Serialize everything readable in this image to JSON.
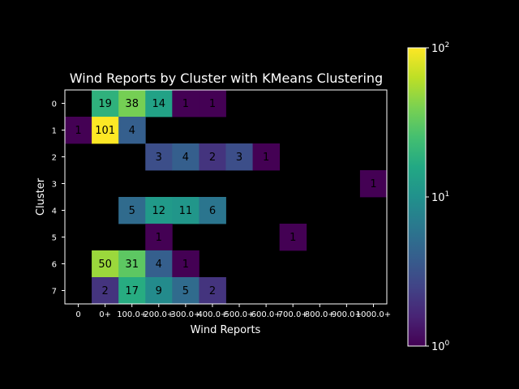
{
  "chart_data": {
    "type": "heatmap",
    "title": "Wind Reports by Cluster with KMeans Clustering",
    "xlabel": "Wind Reports",
    "ylabel": "Cluster",
    "x_categories": [
      "0",
      "0+",
      "100.0+",
      "200.0+",
      "300.0+",
      "400.0+",
      "500.0+",
      "600.0+",
      "700.0+",
      "800.0+",
      "900.0+",
      "1000.0+"
    ],
    "y_categories": [
      "0",
      "1",
      "2",
      "3",
      "4",
      "5",
      "6",
      "7"
    ],
    "values": [
      [
        null,
        19,
        38,
        14,
        1,
        1,
        null,
        null,
        null,
        null,
        null,
        null
      ],
      [
        1,
        101,
        4,
        null,
        null,
        null,
        null,
        null,
        null,
        null,
        null,
        null
      ],
      [
        null,
        null,
        null,
        3,
        4,
        2,
        3,
        1,
        null,
        null,
        null,
        null
      ],
      [
        null,
        null,
        null,
        null,
        null,
        null,
        null,
        null,
        null,
        null,
        null,
        1
      ],
      [
        null,
        null,
        5,
        12,
        11,
        6,
        null,
        null,
        null,
        null,
        null,
        null
      ],
      [
        null,
        null,
        null,
        1,
        null,
        null,
        null,
        null,
        1,
        null,
        null,
        null
      ],
      [
        null,
        50,
        31,
        4,
        1,
        null,
        null,
        null,
        null,
        null,
        null,
        null
      ],
      [
        null,
        2,
        17,
        9,
        5,
        2,
        null,
        null,
        null,
        null,
        null,
        null
      ]
    ],
    "colorscale": "viridis",
    "color_scale_type": "log",
    "color_range": [
      1,
      100
    ],
    "colorbar_ticks": [
      {
        "base": "10",
        "exp": "0",
        "value": 1
      },
      {
        "base": "10",
        "exp": "1",
        "value": 10
      },
      {
        "base": "10",
        "exp": "2",
        "value": 100
      }
    ],
    "background": "#000000",
    "text_color": "#ffffff"
  }
}
